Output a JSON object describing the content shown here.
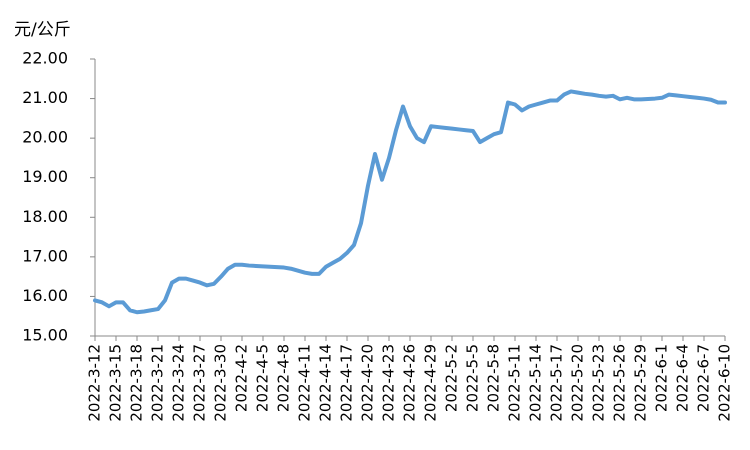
{
  "chart_data": {
    "type": "line",
    "y_label": "元/公斤",
    "categories": [
      "2022-3-12",
      null,
      null,
      "2022-3-15",
      null,
      null,
      "2022-3-18",
      null,
      null,
      "2022-3-21",
      null,
      null,
      "2022-3-24",
      null,
      null,
      "2022-3-27",
      null,
      null,
      "2022-3-30",
      null,
      null,
      "2022-4-2",
      null,
      null,
      "2022-4-5",
      null,
      null,
      "2022-4-8",
      null,
      null,
      "2022-4-11",
      null,
      null,
      "2022-4-14",
      null,
      null,
      "2022-4-17",
      null,
      null,
      "2022-4-20",
      null,
      null,
      "2022-4-23",
      null,
      null,
      "2022-4-26",
      null,
      null,
      "2022-4-29",
      null,
      null,
      "2022-5-2",
      null,
      null,
      "2022-5-5",
      null,
      null,
      "2022-5-8",
      null,
      null,
      "2022-5-11",
      null,
      null,
      "2022-5-14",
      null,
      null,
      "2022-5-17",
      null,
      null,
      "2022-5-20",
      null,
      null,
      "2022-5-23",
      null,
      null,
      "2022-5-26",
      null,
      null,
      "2022-5-29",
      null,
      null,
      "2022-6-1",
      null,
      null,
      "2022-6-4",
      null,
      null,
      "2022-6-7",
      null,
      null,
      "2022-6-10"
    ],
    "values": [
      15.9,
      15.85,
      15.75,
      15.85,
      15.85,
      15.65,
      15.6,
      15.62,
      15.65,
      15.68,
      15.9,
      16.35,
      16.45,
      16.45,
      16.4,
      16.35,
      16.28,
      16.32,
      16.5,
      16.7,
      16.8,
      16.8,
      16.78,
      16.77,
      16.76,
      16.75,
      16.74,
      16.73,
      16.7,
      16.65,
      16.6,
      16.57,
      16.57,
      16.75,
      16.85,
      16.95,
      17.1,
      17.3,
      17.85,
      18.8,
      19.6,
      18.95,
      19.5,
      20.2,
      20.8,
      20.3,
      20.0,
      19.9,
      20.3,
      20.28,
      20.26,
      20.24,
      20.22,
      20.2,
      20.18,
      19.9,
      20.0,
      20.1,
      20.15,
      20.9,
      20.85,
      20.7,
      20.8,
      20.85,
      20.9,
      20.95,
      20.95,
      21.1,
      21.18,
      21.15,
      21.12,
      21.1,
      21.07,
      21.05,
      21.07,
      20.98,
      21.02,
      20.98,
      20.98,
      20.99,
      21.0,
      21.02,
      21.1,
      21.08,
      21.06,
      21.04,
      21.02,
      21.0,
      20.97,
      20.9,
      20.9
    ],
    "color": "#5b9bd5",
    "ylim": [
      15,
      22
    ],
    "yticks": [
      {
        "value": 15,
        "label": "15.00"
      },
      {
        "value": 16,
        "label": "16.00"
      },
      {
        "value": 17,
        "label": "17.00"
      },
      {
        "value": 18,
        "label": "18.00"
      },
      {
        "value": 19,
        "label": "19.00"
      },
      {
        "value": 20,
        "label": "20.00"
      },
      {
        "value": 21,
        "label": "21.00"
      },
      {
        "value": 22,
        "label": "22.00"
      }
    ],
    "grid": false
  }
}
